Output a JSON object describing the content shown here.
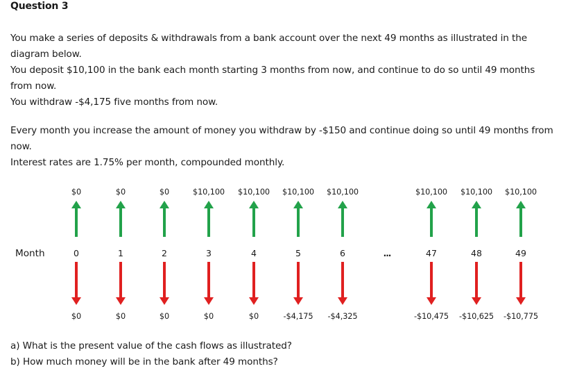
{
  "title": "Question 3",
  "intro": [
    "You make a series of deposits & withdrawals from a bank account over the next 49 months as illustrated in the diagram below.",
    "You deposit $10,100 in the bank each month starting 3 months from now, and continue to do so until 49 months from now.",
    "You withdraw -$4,175 five months from now."
  ],
  "details": [
    "Every month you increase the amount of money you withdraw by -$150 and continue doing so until 49 months from now.",
    "Interest rates are 1.75% per month, compounded monthly."
  ],
  "diagram": {
    "month_label": "Month",
    "ellipsis": "...",
    "deposit_color": "#22a24a",
    "withdrawal_color": "#e02020",
    "columns": [
      {
        "month": "0",
        "deposit": "$0",
        "withdrawal": "$0"
      },
      {
        "month": "1",
        "deposit": "$0",
        "withdrawal": "$0"
      },
      {
        "month": "2",
        "deposit": "$0",
        "withdrawal": "$0"
      },
      {
        "month": "3",
        "deposit": "$10,100",
        "withdrawal": "$0"
      },
      {
        "month": "4",
        "deposit": "$10,100",
        "withdrawal": "$0"
      },
      {
        "month": "5",
        "deposit": "$10,100",
        "withdrawal": "-$4,175"
      },
      {
        "month": "6",
        "deposit": "$10,100",
        "withdrawal": "-$4,325"
      },
      {
        "month": "47",
        "deposit": "$10,100",
        "withdrawal": "-$10,475"
      },
      {
        "month": "48",
        "deposit": "$10,100",
        "withdrawal": "-$10,625"
      },
      {
        "month": "49",
        "deposit": "$10,100",
        "withdrawal": "-$10,775"
      }
    ]
  },
  "questions": [
    "a) What is the present value of the cash flows as illustrated?",
    "b) How much money will be in the bank after 49 months?"
  ]
}
